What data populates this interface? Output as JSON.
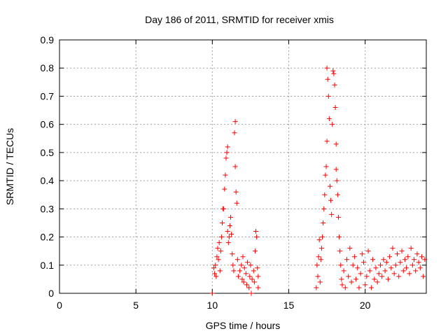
{
  "chart_data": {
    "type": "scatter",
    "title": "Day 186 of 2011, SRMTID for receiver xmis",
    "xlabel": "GPS time / hours",
    "ylabel": "SRMTID / TECUs",
    "xlim": [
      0,
      24
    ],
    "ylim": [
      0,
      0.9
    ],
    "xticks": [
      0,
      5,
      10,
      15,
      20
    ],
    "yticks": [
      0,
      0.1,
      0.2,
      0.3,
      0.4,
      0.5,
      0.6,
      0.7,
      0.8,
      0.9
    ],
    "xtick_labels": [
      "0",
      "5",
      "10",
      "15",
      "20"
    ],
    "ytick_labels": [
      "0",
      "0.1",
      "0.2",
      "0.3",
      "0.4",
      "0.5",
      "0.6",
      "0.7",
      "0.8",
      "0.9"
    ],
    "grid": true,
    "marker": "+",
    "series": [
      {
        "name": "SRMTID",
        "color": "#ff0000",
        "points": [
          [
            10.0,
            0.0
          ],
          [
            10.0,
            0.0
          ],
          [
            10.1,
            0.09
          ],
          [
            10.15,
            0.07
          ],
          [
            10.2,
            0.1
          ],
          [
            10.25,
            0.06
          ],
          [
            10.3,
            0.13
          ],
          [
            10.35,
            0.16
          ],
          [
            10.4,
            0.12
          ],
          [
            10.45,
            0.18
          ],
          [
            10.5,
            0.08
          ],
          [
            10.55,
            0.15
          ],
          [
            10.6,
            0.2
          ],
          [
            10.65,
            0.25
          ],
          [
            10.7,
            0.3
          ],
          [
            10.75,
            0.3
          ],
          [
            10.8,
            0.37
          ],
          [
            10.85,
            0.42
          ],
          [
            10.9,
            0.48
          ],
          [
            10.95,
            0.5
          ],
          [
            11.0,
            0.52
          ],
          [
            11.0,
            0.22
          ],
          [
            11.05,
            0.18
          ],
          [
            11.1,
            0.2
          ],
          [
            11.15,
            0.24
          ],
          [
            11.2,
            0.27
          ],
          [
            11.25,
            0.21
          ],
          [
            11.3,
            0.14
          ],
          [
            11.35,
            0.1
          ],
          [
            11.4,
            0.08
          ],
          [
            11.45,
            0.57
          ],
          [
            11.5,
            0.61
          ],
          [
            11.5,
            0.45
          ],
          [
            11.55,
            0.36
          ],
          [
            11.6,
            0.32
          ],
          [
            11.65,
            0.12
          ],
          [
            11.7,
            0.06
          ],
          [
            11.8,
            0.08
          ],
          [
            11.9,
            0.1
          ],
          [
            11.95,
            0.05
          ],
          [
            12.0,
            0.13
          ],
          [
            12.05,
            0.04
          ],
          [
            12.1,
            0.09
          ],
          [
            12.2,
            0.07
          ],
          [
            12.25,
            0.03
          ],
          [
            12.3,
            0.11
          ],
          [
            12.4,
            0.02
          ],
          [
            12.45,
            0.06
          ],
          [
            12.5,
            0.1
          ],
          [
            12.55,
            0.0
          ],
          [
            12.6,
            0.05
          ],
          [
            12.7,
            0.08
          ],
          [
            12.75,
            0.04
          ],
          [
            12.8,
            0.15
          ],
          [
            12.85,
            0.22
          ],
          [
            12.9,
            0.2
          ],
          [
            12.95,
            0.09
          ],
          [
            13.0,
            0.06
          ],
          [
            13.0,
            0.02
          ],
          [
            16.8,
            0.02
          ],
          [
            16.85,
            0.1
          ],
          [
            16.9,
            0.06
          ],
          [
            16.95,
            0.13
          ],
          [
            17.0,
            0.19
          ],
          [
            17.05,
            0.04
          ],
          [
            17.1,
            0.12
          ],
          [
            17.15,
            0.16
          ],
          [
            17.2,
            0.2
          ],
          [
            17.25,
            0.25
          ],
          [
            17.3,
            0.3
          ],
          [
            17.35,
            0.35
          ],
          [
            17.4,
            0.42
          ],
          [
            17.45,
            0.45
          ],
          [
            17.5,
            0.54
          ],
          [
            17.5,
            0.8
          ],
          [
            17.55,
            0.76
          ],
          [
            17.6,
            0.7
          ],
          [
            17.65,
            0.62
          ],
          [
            17.7,
            0.38
          ],
          [
            17.75,
            0.33
          ],
          [
            17.8,
            0.28
          ],
          [
            17.85,
            0.6
          ],
          [
            17.9,
            0.79
          ],
          [
            17.95,
            0.78
          ],
          [
            18.0,
            0.74
          ],
          [
            18.05,
            0.66
          ],
          [
            18.1,
            0.53
          ],
          [
            18.1,
            0.44
          ],
          [
            18.15,
            0.4
          ],
          [
            18.2,
            0.35
          ],
          [
            18.25,
            0.27
          ],
          [
            18.3,
            0.2
          ],
          [
            18.35,
            0.15
          ],
          [
            18.4,
            0.1
          ],
          [
            18.45,
            0.05
          ],
          [
            18.5,
            0.03
          ],
          [
            18.6,
            0.08
          ],
          [
            18.7,
            0.02
          ],
          [
            18.8,
            0.12
          ],
          [
            18.9,
            0.06
          ],
          [
            19.0,
            0.16
          ],
          [
            19.1,
            0.04
          ],
          [
            19.2,
            0.1
          ],
          [
            19.3,
            0.13
          ],
          [
            19.4,
            0.05
          ],
          [
            19.5,
            0.09
          ],
          [
            19.6,
            0.02
          ],
          [
            19.7,
            0.07
          ],
          [
            19.8,
            0.14
          ],
          [
            19.9,
            0.11
          ],
          [
            20.0,
            0.03
          ],
          [
            20.1,
            0.06
          ],
          [
            20.2,
            0.15
          ],
          [
            20.3,
            0.08
          ],
          [
            20.4,
            0.02
          ],
          [
            20.5,
            0.12
          ],
          [
            20.6,
            0.05
          ],
          [
            20.7,
            0.09
          ],
          [
            20.8,
            0.04
          ],
          [
            20.9,
            0.07
          ],
          [
            21.0,
            0.1
          ],
          [
            21.1,
            0.06
          ],
          [
            21.2,
            0.12
          ],
          [
            21.3,
            0.08
          ],
          [
            21.4,
            0.11
          ],
          [
            21.5,
            0.05
          ],
          [
            21.6,
            0.13
          ],
          [
            21.7,
            0.09
          ],
          [
            21.8,
            0.16
          ],
          [
            21.9,
            0.07
          ],
          [
            22.0,
            0.1
          ],
          [
            22.1,
            0.14
          ],
          [
            22.2,
            0.06
          ],
          [
            22.3,
            0.11
          ],
          [
            22.4,
            0.15
          ],
          [
            22.5,
            0.08
          ],
          [
            22.6,
            0.12
          ],
          [
            22.7,
            0.09
          ],
          [
            22.8,
            0.13
          ],
          [
            22.9,
            0.07
          ],
          [
            23.0,
            0.16
          ],
          [
            23.1,
            0.1
          ],
          [
            23.2,
            0.12
          ],
          [
            23.3,
            0.08
          ],
          [
            23.4,
            0.14
          ],
          [
            23.5,
            0.11
          ],
          [
            23.6,
            0.09
          ],
          [
            23.7,
            0.13
          ],
          [
            23.8,
            0.06
          ],
          [
            23.9,
            0.12
          ]
        ]
      }
    ]
  }
}
